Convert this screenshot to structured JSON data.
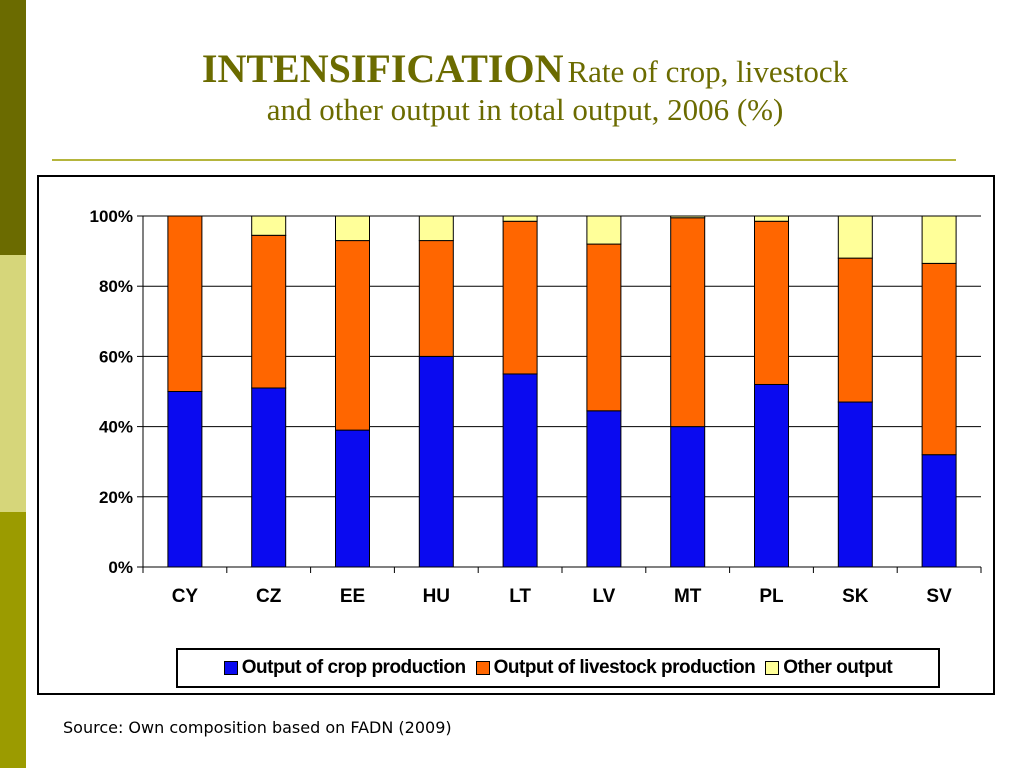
{
  "slide": {
    "title_main": "INTENSIFICATION",
    "title_sub": "Rate of crop, livestock",
    "title_line2": "and other output in total output, 2006 (%)",
    "source": "Source: Own composition based on FADN (2009)"
  },
  "colors": {
    "crop": "#0a0af0",
    "livestock": "#ff6600",
    "other": "#ffff99",
    "sidebar_dark": "#6b6b00",
    "sidebar_light": "#d6d67a",
    "sidebar_mid": "#9b9b00",
    "title": "#6b6b00"
  },
  "chart_data": {
    "type": "bar",
    "stacked": true,
    "title": "",
    "xlabel": "",
    "ylabel": "",
    "ylim": [
      0,
      100
    ],
    "y_ticks": [
      "0%",
      "20%",
      "40%",
      "60%",
      "80%",
      "100%"
    ],
    "grid": true,
    "legend_position": "bottom",
    "categories": [
      "CY",
      "CZ",
      "EE",
      "HU",
      "LT",
      "LV",
      "MT",
      "PL",
      "SK",
      "SV"
    ],
    "series": [
      {
        "name": "Output of crop production",
        "color": "#0a0af0",
        "values": [
          50,
          51,
          39,
          60,
          55,
          44.5,
          40,
          52,
          47,
          32
        ]
      },
      {
        "name": "Output of livestock production",
        "color": "#ff6600",
        "values": [
          50,
          43.5,
          54,
          33,
          43.5,
          47.5,
          59.5,
          46.5,
          41,
          54.5
        ]
      },
      {
        "name": "Other output",
        "color": "#ffff99",
        "values": [
          0,
          5.5,
          7,
          7,
          1.5,
          8,
          0.5,
          1.5,
          12,
          13.5
        ]
      }
    ]
  }
}
